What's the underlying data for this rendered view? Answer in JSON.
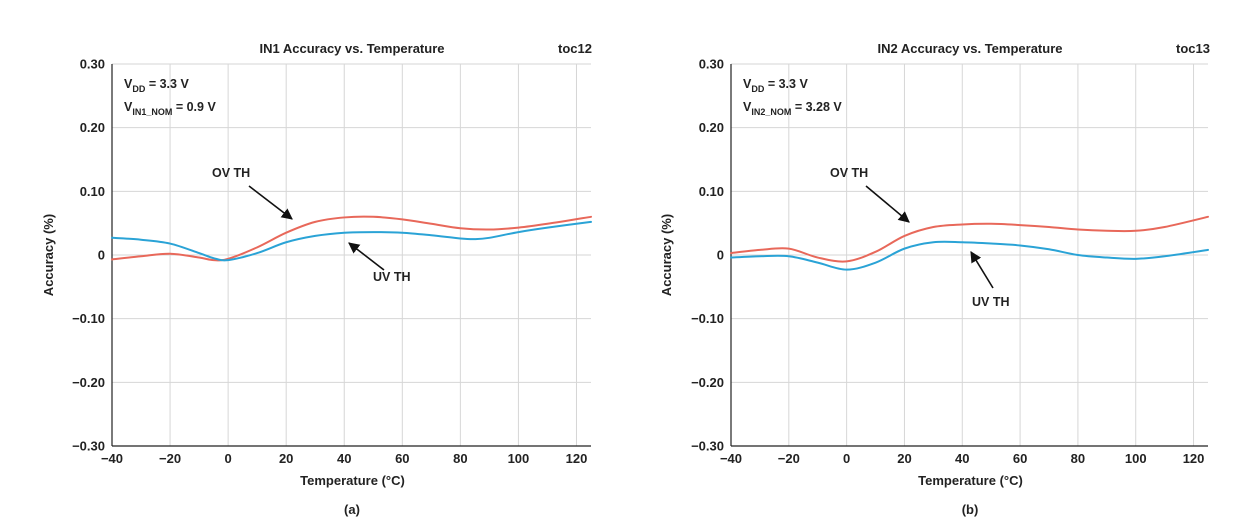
{
  "chart_data": [
    {
      "type": "line",
      "title": "IN1 Accuracy vs. Temperature",
      "tag": "toc12",
      "caption": "(a)",
      "xlabel": "Temperature (°C)",
      "ylabel": "Accuracy (%)",
      "xlim": [
        -40,
        125
      ],
      "ylim": [
        -0.3,
        0.3
      ],
      "xticks": [
        -40,
        -20,
        0,
        20,
        40,
        60,
        80,
        100,
        120
      ],
      "xtick_labels": [
        "−40",
        "−20",
        "0",
        "20",
        "40",
        "60",
        "80",
        "100",
        "120"
      ],
      "yticks": [
        0.3,
        0.2,
        0.1,
        0,
        -0.1,
        -0.2,
        -0.3
      ],
      "ytick_labels": [
        "0.30",
        "0.20",
        "0.10",
        "0",
        "−0.10",
        "−0.20",
        "−0.30"
      ],
      "grid": true,
      "conditions": [
        {
          "main": "V",
          "sub": "DD",
          "rest": " = 3.3 V"
        },
        {
          "main": "V",
          "sub": "IN1_NOM",
          "rest": " = 0.9 V"
        }
      ],
      "series": [
        {
          "name": "OV TH",
          "color": "#e8685a",
          "x": [
            -40,
            -30,
            -20,
            -10,
            -5,
            0,
            10,
            20,
            30,
            40,
            50,
            60,
            70,
            80,
            90,
            100,
            110,
            125
          ],
          "y": [
            -0.007,
            -0.002,
            0.002,
            -0.004,
            -0.008,
            -0.006,
            0.012,
            0.035,
            0.052,
            0.059,
            0.06,
            0.056,
            0.049,
            0.042,
            0.04,
            0.043,
            0.049,
            0.06
          ]
        },
        {
          "name": "UV TH",
          "color": "#2aa3d6",
          "x": [
            -40,
            -30,
            -20,
            -10,
            -5,
            0,
            10,
            20,
            30,
            40,
            50,
            60,
            70,
            80,
            85,
            90,
            100,
            110,
            125
          ],
          "y": [
            0.027,
            0.024,
            0.018,
            0.003,
            -0.005,
            -0.008,
            0.003,
            0.02,
            0.03,
            0.035,
            0.036,
            0.035,
            0.031,
            0.026,
            0.025,
            0.027,
            0.036,
            0.043,
            0.052
          ]
        }
      ],
      "annotations": [
        {
          "text": "OV TH",
          "series": "OV TH",
          "x": 22,
          "y": 0.053
        },
        {
          "text": "UV TH",
          "series": "UV TH",
          "x": 37,
          "y": 0.024
        }
      ]
    },
    {
      "type": "line",
      "title": "IN2 Accuracy vs. Temperature",
      "tag": "toc13",
      "caption": "(b)",
      "xlabel": "Temperature (°C)",
      "ylabel": "Accuracy (%)",
      "xlim": [
        -40,
        125
      ],
      "ylim": [
        -0.3,
        0.3
      ],
      "xticks": [
        -40,
        -20,
        0,
        20,
        40,
        60,
        80,
        100,
        120
      ],
      "xtick_labels": [
        "−40",
        "−20",
        "0",
        "20",
        "40",
        "60",
        "80",
        "100",
        "120"
      ],
      "yticks": [
        0.3,
        0.2,
        0.1,
        0,
        -0.1,
        -0.2,
        -0.3
      ],
      "ytick_labels": [
        "0.30",
        "0.20",
        "0.10",
        "0",
        "−0.10",
        "−0.20",
        "−0.30"
      ],
      "grid": true,
      "conditions": [
        {
          "main": "V",
          "sub": "DD",
          "rest": " = 3.3 V"
        },
        {
          "main": "V",
          "sub": "IN2_NOM",
          "rest": " = 3.28 V"
        }
      ],
      "series": [
        {
          "name": "OV TH",
          "color": "#e8685a",
          "x": [
            -40,
            -30,
            -20,
            -10,
            0,
            10,
            20,
            30,
            40,
            50,
            60,
            70,
            80,
            90,
            100,
            110,
            125
          ],
          "y": [
            0.003,
            0.008,
            0.01,
            -0.004,
            -0.01,
            0.005,
            0.03,
            0.044,
            0.048,
            0.049,
            0.047,
            0.044,
            0.04,
            0.038,
            0.038,
            0.044,
            0.06
          ]
        },
        {
          "name": "UV TH",
          "color": "#2aa3d6",
          "x": [
            -40,
            -30,
            -20,
            -10,
            0,
            10,
            20,
            30,
            40,
            50,
            60,
            70,
            80,
            90,
            100,
            110,
            125
          ],
          "y": [
            -0.004,
            -0.002,
            -0.002,
            -0.012,
            -0.023,
            -0.012,
            0.01,
            0.02,
            0.02,
            0.018,
            0.015,
            0.009,
            0.0,
            -0.004,
            -0.006,
            -0.002,
            0.008
          ]
        }
      ],
      "annotations": [
        {
          "text": "OV TH",
          "series": "OV TH",
          "x": 22,
          "y": 0.037
        },
        {
          "text": "UV TH",
          "series": "UV TH",
          "x": 42,
          "y": 0.014
        }
      ]
    }
  ]
}
